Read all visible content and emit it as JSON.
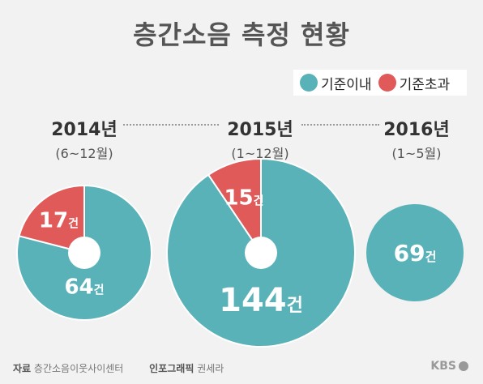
{
  "title": "층간소음 측정 현황",
  "colors": {
    "within": "#5ab2b9",
    "exceeded": "#e05a5a"
  },
  "legend": [
    {
      "label": "기준이내",
      "color": "#5ab2b9"
    },
    {
      "label": "기준초과",
      "color": "#e05a5a"
    }
  ],
  "chart_data": [
    {
      "type": "pie",
      "title": "2014년",
      "subtitle": "(6~12월)",
      "slices": [
        {
          "name": "기준이내",
          "value": 64,
          "label": "64건"
        },
        {
          "name": "기준초과",
          "value": 17,
          "label": "17건"
        }
      ]
    },
    {
      "type": "pie",
      "title": "2015년",
      "subtitle": "(1~12월)",
      "slices": [
        {
          "name": "기준이내",
          "value": 144,
          "label": "144건"
        },
        {
          "name": "기준초과",
          "value": 15,
          "label": "15건"
        }
      ]
    },
    {
      "type": "pie",
      "title": "2016년",
      "subtitle": "(1~5월)",
      "slices": [
        {
          "name": "기준이내",
          "value": 69,
          "label": "69건"
        }
      ]
    }
  ],
  "footer": {
    "source_label": "자료",
    "source_value": "층간소음이웃사이센터",
    "graphic_label": "인포그래픽",
    "graphic_value": "권세라"
  },
  "logo": "KBS"
}
